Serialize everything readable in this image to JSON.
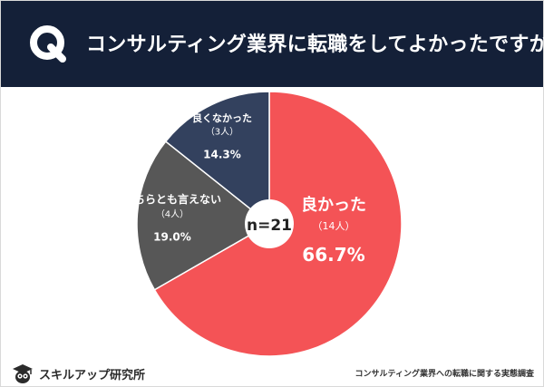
{
  "header": {
    "q_label": "Q",
    "title": "コンサルティング業界に転職をしてよかったですか"
  },
  "chart_data": {
    "type": "pie",
    "center_label": "n=21",
    "slices": [
      {
        "label": "良かった",
        "count_label": "（14人）",
        "percent_label": "66.7%",
        "value": 66.7,
        "color": "#f45356"
      },
      {
        "label": "どちらとも言えない",
        "count_label": "（4人）",
        "percent_label": "19.0%",
        "value": 19.0,
        "color": "#575757"
      },
      {
        "label": "良くなかった",
        "count_label": "（3人）",
        "percent_label": "14.3%",
        "value": 14.3,
        "color": "#33415e"
      }
    ]
  },
  "footer": {
    "brand": "スキルアップ研究所",
    "source": "コンサルティング業界への転職に関する実態調査"
  }
}
